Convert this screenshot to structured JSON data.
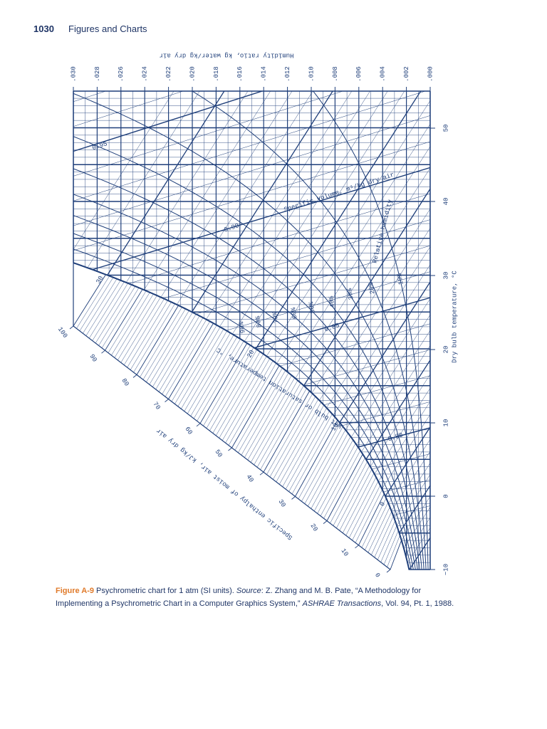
{
  "header": {
    "page_number": "1030",
    "running_title": "Figures and Charts"
  },
  "figure": {
    "humidity_ratio_label": "Humidity ratio, kg water/kg dry air",
    "humidity_ratio_ticks": [
      ".030",
      ".028",
      ".026",
      ".024",
      ".022",
      ".020",
      ".018",
      ".016",
      ".014",
      ".012",
      ".010",
      ".008",
      ".006",
      ".004",
      ".002",
      ".000"
    ],
    "dry_bulb_label": "Dry bulb temperature, °C",
    "dry_bulb_ticks": [
      "50",
      "40",
      "30",
      "20",
      "10",
      "0",
      "−10"
    ],
    "enthalpy_label": "Specific enthalpy of moist air, kJ/kg dry air",
    "enthalpy_ticks": [
      "100",
      "90",
      "80",
      "70",
      "60",
      "50",
      "40",
      "30",
      "20",
      "10",
      "0"
    ],
    "wet_bulb_label": "Wet bulb or saturation temperature, °C",
    "wet_bulb_ticks": [
      "30",
      "20",
      "10",
      "0"
    ],
    "relative_humidity_label": "Relative humidity",
    "relative_humidity_ticks": [
      "10%",
      "20%",
      "30%",
      "40%",
      "50%",
      "60%",
      "70%",
      "80%",
      "90%"
    ],
    "specific_volume_label": "Specific volume, m³/kg dry air",
    "specific_volume_ticks": [
      "0.95",
      "0.90",
      "0.85",
      "0.80"
    ]
  },
  "caption": {
    "label": "Figure A-9",
    "text_1": " Psychrometric chart for 1 atm (SI units). ",
    "source_label": "Source",
    "text_2": ": Z. Zhang and M. B. Pate, “A Methodology for Implementing a Psychrometric Chart in a Computer Graphics System,” ",
    "journal": "ASHRAE Transactions",
    "text_3": ", Vol. 94, Pt. 1, 1988."
  }
}
